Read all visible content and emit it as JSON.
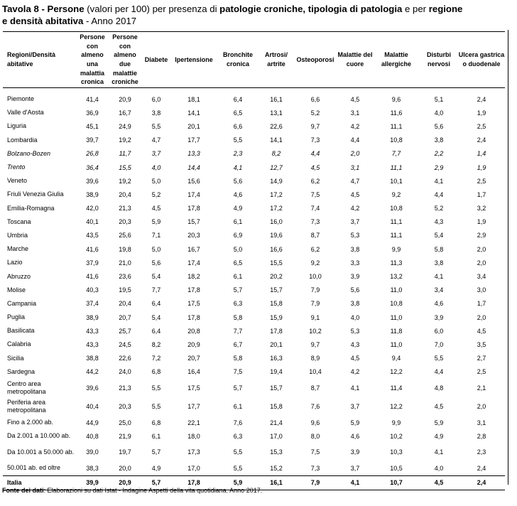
{
  "title": {
    "label": "Tavola 8",
    "sep1": " - ",
    "subject": "Persone",
    "part1": " (valori per 100) per presenza di ",
    "bold1": "patologie croniche, tipologia di patologia",
    "part2": " e per ",
    "bold2": "regione",
    "line2_bold": "e densità abitativa",
    "line2_rest": " - Anno 2017"
  },
  "headers": [
    "Regioni/Densità abitative",
    "Persone con almeno una malattia cronica",
    "Persone con almeno due malattie croniche",
    "Diabete",
    "Ipertensione",
    "Bronchite cronica",
    "Artrosi/ artrite",
    "Osteoporosi",
    "Malattie del cuore",
    "Malattie allergiche",
    "Disturbi nervosi",
    "Ulcera gastrica o duodenale"
  ],
  "rows": [
    {
      "region": "Piemonte",
      "values": [
        "41,4",
        "20,9",
        "6,0",
        "18,1",
        "6,4",
        "16,1",
        "6,6",
        "4,5",
        "9,6",
        "5,1",
        "2,4"
      ]
    },
    {
      "region": "Valle d'Aosta",
      "values": [
        "36,9",
        "16,7",
        "3,8",
        "14,1",
        "6,5",
        "13,1",
        "5,2",
        "3,1",
        "11,6",
        "4,0",
        "1,9"
      ]
    },
    {
      "region": "Liguria",
      "values": [
        "45,1",
        "24,9",
        "5,5",
        "20,1",
        "6,6",
        "22,6",
        "9,7",
        "4,2",
        "11,1",
        "5,6",
        "2,5"
      ]
    },
    {
      "region": "Lombardia",
      "values": [
        "39,7",
        "19,2",
        "4,7",
        "17,7",
        "5,5",
        "14,1",
        "7,3",
        "4,4",
        "10,8",
        "3,8",
        "2,4"
      ]
    },
    {
      "region": "Bolzano-Bozen",
      "italic": true,
      "values": [
        "26,8",
        "11,7",
        "3,7",
        "13,3",
        "2,3",
        "8,2",
        "4,4",
        "2,0",
        "7,7",
        "2,2",
        "1,4"
      ]
    },
    {
      "region": "Trento",
      "italic": true,
      "values": [
        "36,4",
        "15,5",
        "4,0",
        "14,4",
        "4,1",
        "12,7",
        "4,5",
        "3,1",
        "11,1",
        "2,9",
        "1,9"
      ]
    },
    {
      "region": "Veneto",
      "values": [
        "39,6",
        "19,2",
        "5,0",
        "15,6",
        "5,6",
        "14,9",
        "6,2",
        "4,7",
        "10,1",
        "4,1",
        "2,5"
      ]
    },
    {
      "region": "Friuli Venezia Giulia",
      "values": [
        "38,9",
        "20,4",
        "5,2",
        "17,4",
        "4,6",
        "17,2",
        "7,5",
        "4,5",
        "9,2",
        "4,4",
        "1,7"
      ]
    },
    {
      "region": "Emilia-Romagna",
      "values": [
        "42,0",
        "21,3",
        "4,5",
        "17,8",
        "4,9",
        "17,2",
        "7,4",
        "4,2",
        "10,8",
        "5,2",
        "3,2"
      ]
    },
    {
      "region": "Toscana",
      "values": [
        "40,1",
        "20,3",
        "5,9",
        "15,7",
        "6,1",
        "16,0",
        "7,3",
        "3,7",
        "11,1",
        "4,3",
        "1,9"
      ]
    },
    {
      "region": "Umbria",
      "values": [
        "43,5",
        "25,6",
        "7,1",
        "20,3",
        "6,9",
        "19,6",
        "8,7",
        "5,3",
        "11,1",
        "5,4",
        "2,9"
      ]
    },
    {
      "region": "Marche",
      "values": [
        "41,6",
        "19,8",
        "5,0",
        "16,7",
        "5,0",
        "16,6",
        "6,2",
        "3,8",
        "9,9",
        "5,8",
        "2,0"
      ]
    },
    {
      "region": "Lazio",
      "values": [
        "37,9",
        "21,0",
        "5,6",
        "17,4",
        "6,5",
        "15,5",
        "9,2",
        "3,3",
        "11,3",
        "3,8",
        "2,0"
      ]
    },
    {
      "region": "Abruzzo",
      "values": [
        "41,6",
        "23,6",
        "5,4",
        "18,2",
        "6,1",
        "20,2",
        "10,0",
        "3,9",
        "13,2",
        "4,1",
        "3,4"
      ]
    },
    {
      "region": "Molise",
      "values": [
        "40,3",
        "19,5",
        "7,7",
        "17,8",
        "5,7",
        "15,7",
        "7,9",
        "5,6",
        "11,0",
        "3,4",
        "3,0"
      ]
    },
    {
      "region": "Campania",
      "values": [
        "37,4",
        "20,4",
        "6,4",
        "17,5",
        "6,3",
        "15,8",
        "7,9",
        "3,8",
        "10,8",
        "4,6",
        "1,7"
      ]
    },
    {
      "region": "Puglia",
      "values": [
        "38,9",
        "20,7",
        "5,4",
        "17,8",
        "5,8",
        "15,9",
        "9,1",
        "4,0",
        "11,0",
        "3,9",
        "2,0"
      ]
    },
    {
      "region": "Basilicata",
      "values": [
        "43,3",
        "25,7",
        "6,4",
        "20,8",
        "7,7",
        "17,8",
        "10,2",
        "5,3",
        "11,8",
        "6,0",
        "4,5"
      ]
    },
    {
      "region": "Calabria",
      "values": [
        "43,3",
        "24,5",
        "8,2",
        "20,9",
        "6,7",
        "20,1",
        "9,7",
        "4,3",
        "11,0",
        "7,0",
        "3,5"
      ]
    },
    {
      "region": "Sicilia",
      "values": [
        "38,8",
        "22,6",
        "7,2",
        "20,7",
        "5,8",
        "16,3",
        "8,9",
        "4,5",
        "9,4",
        "5,5",
        "2,7"
      ]
    },
    {
      "region": "Sardegna",
      "values": [
        "44,2",
        "24,0",
        "6,8",
        "16,4",
        "7,5",
        "19,4",
        "10,4",
        "4,2",
        "12,2",
        "4,4",
        "2,5"
      ]
    },
    {
      "region": "Centro area metropolitana",
      "tall": true,
      "values": [
        "39,6",
        "21,3",
        "5,5",
        "17,5",
        "5,7",
        "15,7",
        "8,7",
        "4,1",
        "11,4",
        "4,8",
        "2,1"
      ]
    },
    {
      "region": "Periferia area metropolitana",
      "tall": true,
      "values": [
        "40,4",
        "20,3",
        "5,5",
        "17,7",
        "6,1",
        "15,8",
        "7,6",
        "3,7",
        "12,2",
        "4,5",
        "2,0"
      ]
    },
    {
      "region": "Fino a 2.000 ab.",
      "values": [
        "44,9",
        "25,0",
        "6,8",
        "22,1",
        "7,6",
        "21,4",
        "9,6",
        "5,9",
        "9,9",
        "5,9",
        "3,1"
      ]
    },
    {
      "region": "Da 2.001 a 10.000 ab.",
      "values": [
        "40,8",
        "21,9",
        "6,1",
        "18,0",
        "6,3",
        "17,0",
        "8,0",
        "4,6",
        "10,2",
        "4,9",
        "2,8"
      ]
    },
    {
      "region": "Da 10.001 a 50.000 ab.",
      "tall": true,
      "values": [
        "39,0",
        "19,7",
        "5,7",
        "17,3",
        "5,5",
        "15,3",
        "7,5",
        "3,9",
        "10,3",
        "4,1",
        "2,3"
      ]
    },
    {
      "region": "50.001 ab. ed oltre",
      "values": [
        "38,3",
        "20,0",
        "4,9",
        "17,0",
        "5,5",
        "15,2",
        "7,3",
        "3,7",
        "10,5",
        "4,0",
        "2,4"
      ]
    }
  ],
  "total": {
    "region": "Italia",
    "values": [
      "39,9",
      "20,9",
      "5,7",
      "17,8",
      "5,9",
      "16,1",
      "7,9",
      "4,1",
      "10,7",
      "4,5",
      "2,4"
    ]
  },
  "footer": {
    "label": "Fonte dei dati",
    "text": ": Elaborazioni su dati Istat - Indagine Aspetti della vita quotidiana. Anno 2017."
  }
}
